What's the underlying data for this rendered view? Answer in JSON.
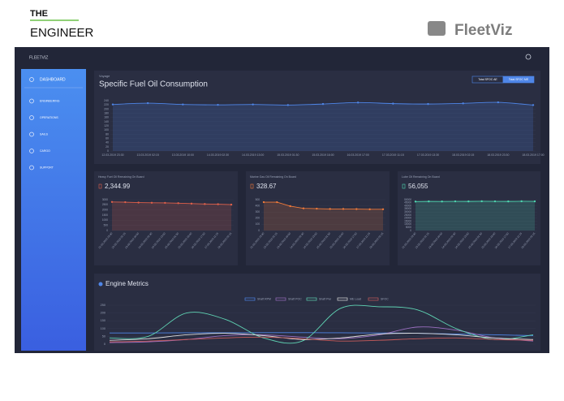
{
  "header": {
    "brand_top": "THE",
    "brand_bottom": "ENGINEER",
    "logo": "FleetViz"
  },
  "app": {
    "title": "FLEETVIZ",
    "sidebar": [
      "DASHBOARD",
      "ENGINEERING",
      "OPERATIONS",
      "SAILS",
      "CARGO",
      "SUPPORT"
    ]
  },
  "sfoc": {
    "chart_data": {
      "type": "line",
      "subtitle": "Voyage",
      "title": "Specific Fuel Oil Consumption",
      "buttons": [
        "Total SFOC AE",
        "Total SFOC ME"
      ],
      "categories": [
        "12.03.2019 23:30",
        "13.03.2019 02:15",
        "13.03.2019 10:00",
        "14.03.2019 02:30",
        "14.03.2019 13:00",
        "15.03.2019 01:30",
        "15.03.2019 16:00",
        "16.03.2019 17:00",
        "17.03.2019 11:15",
        "17.03.2019 13:30",
        "18.03.2019 02:15",
        "18.03.2019 23:30",
        "18.03.2019 17:00"
      ],
      "values": [
        222,
        228,
        222,
        220,
        222,
        219,
        224,
        231,
        226,
        224,
        227,
        232,
        219
      ],
      "color": "#4f86e8",
      "ylim": [
        0,
        240
      ],
      "yticks": [
        0,
        20,
        40,
        60,
        80,
        100,
        120,
        140,
        160,
        180,
        200,
        220,
        240
      ],
      "grid": true
    }
  },
  "tanks": [
    {
      "chart_data": {
        "type": "line",
        "title": "Heavy Fuel Oil Remaining On Board",
        "reading": "2,344.99",
        "categories": [
          "12.03.2019 23:30",
          "13.03.2019 02:15",
          "13.03.2019 10:00",
          "14.03.2019 02:30",
          "14.03.2019 13:00",
          "15.03.2019 01:30",
          "15.03.2019 16:00",
          "16.03.2019 17:00",
          "17.03.2019 11:15",
          "18.03.2019 02:15"
        ],
        "values": [
          2780,
          2760,
          2720,
          2700,
          2690,
          2660,
          2620,
          2580,
          2560,
          2520
        ],
        "color": "#e0604a",
        "ylim": [
          0,
          3000
        ],
        "yticks": [
          0,
          500,
          1000,
          1500,
          2000,
          2500,
          3000
        ],
        "grid": true
      }
    },
    {
      "chart_data": {
        "type": "line",
        "title": "Marine Gas Oil Remaining On Board",
        "reading": "328.67",
        "categories": [
          "12.03.2019 23:30",
          "13.03.2019 02:15",
          "13.03.2019 10:00",
          "14.03.2019 02:30",
          "14.03.2019 13:00",
          "15.03.2019 01:30",
          "15.03.2019 16:00",
          "16.03.2019 17:00",
          "17.03.2019 11:15",
          "18.03.2019 02:15"
        ],
        "values": [
          460,
          460,
          395,
          360,
          355,
          350,
          350,
          348,
          345,
          345
        ],
        "color": "#f07a3a",
        "ylim": [
          0,
          500
        ],
        "yticks": [
          0,
          100,
          200,
          300,
          400,
          500
        ],
        "grid": true
      }
    },
    {
      "chart_data": {
        "type": "line",
        "title": "Lube Oil Remaining On Board",
        "reading": "56,055",
        "categories": [
          "12.03.2019 23:30",
          "13.03.2019 02:15",
          "13.03.2019 10:00",
          "14.03.2019 02:30",
          "14.03.2019 13:00",
          "15.03.2019 01:30",
          "15.03.2019 16:00",
          "16.03.2019 17:00",
          "17.03.2019 11:15",
          "18.03.2019 02:15"
        ],
        "values": [
          47000,
          47200,
          47100,
          47300,
          47200,
          47400,
          47300,
          47200,
          47400,
          47300
        ],
        "color": "#4fd6b0",
        "ylim": [
          0,
          50000
        ],
        "yticks": [
          0,
          5000,
          10000,
          15000,
          20000,
          25000,
          30000,
          35000,
          40000,
          45000,
          50000
        ],
        "grid": true
      }
    }
  ],
  "engine": {
    "chart_data": {
      "type": "line",
      "title": "Engine Metrics",
      "series": [
        {
          "name": "Shaft RPM",
          "color": "#4f86e8",
          "values": [
            72,
            72,
            73,
            73,
            74,
            74,
            73,
            72,
            70,
            65,
            60,
            55
          ]
        },
        {
          "name": "Shaft POC",
          "color": "#9b6fc0",
          "values": [
            10,
            15,
            30,
            55,
            60,
            45,
            35,
            60,
            110,
            90,
            40,
            20
          ]
        },
        {
          "name": "Shaft Pwr",
          "color": "#5fd3b3",
          "values": [
            40,
            50,
            200,
            160,
            40,
            20,
            230,
            240,
            220,
            100,
            30,
            60
          ]
        },
        {
          "name": "ME Load",
          "color": "#dddddd",
          "values": [
            25,
            35,
            60,
            70,
            55,
            30,
            40,
            65,
            70,
            60,
            40,
            30
          ]
        },
        {
          "name": "SFOC",
          "color": "#c75b5b",
          "values": [
            15,
            20,
            30,
            40,
            45,
            35,
            20,
            25,
            35,
            40,
            30,
            25
          ]
        }
      ],
      "ylim": [
        0,
        250
      ],
      "yticks": [
        0,
        50,
        100,
        150,
        200,
        250
      ],
      "grid": true
    }
  }
}
